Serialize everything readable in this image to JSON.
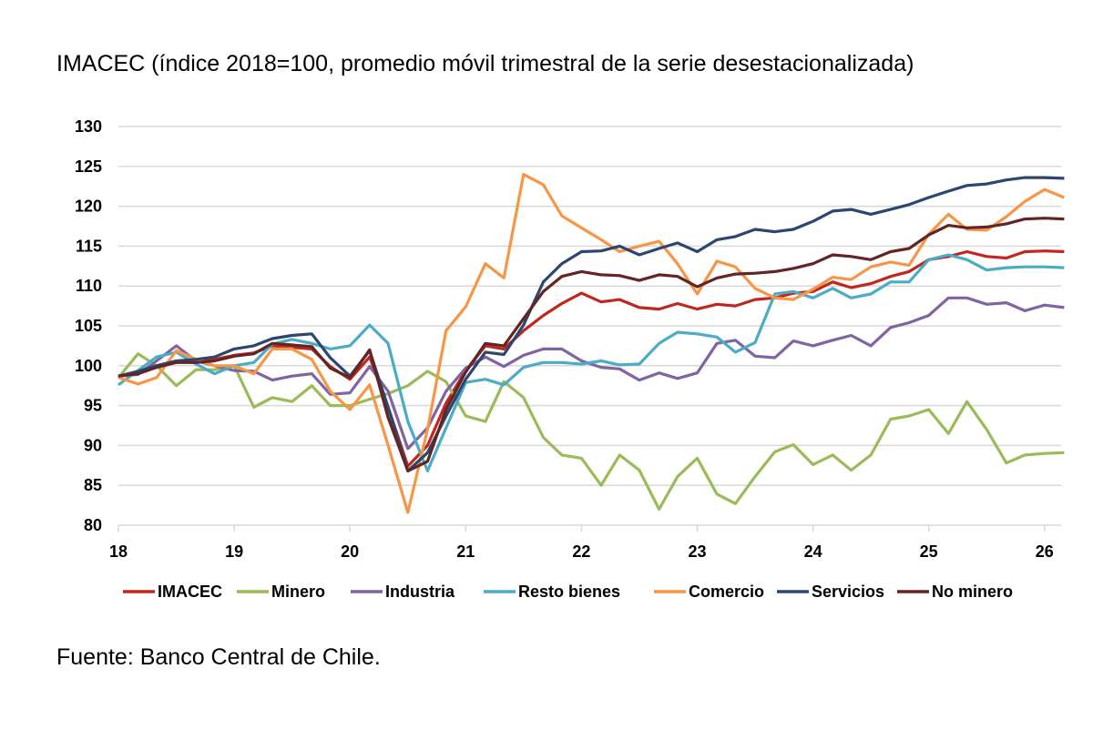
{
  "title": "IMACEC (índice 2018=100, promedio móvil trimestral de la serie desestacionalizada)",
  "source": "Fuente: Banco Central de Chile.",
  "chart_data": {
    "type": "line",
    "title": "IMACEC (índice 2018=100, promedio móvil trimestral de la serie desestacionalizada)",
    "xlabel": "",
    "ylabel": "",
    "xlim": [
      18,
      26.17
    ],
    "ylim": [
      80,
      130
    ],
    "x_ticks": [
      "18",
      "19",
      "20",
      "21",
      "22",
      "23",
      "24",
      "25",
      "26"
    ],
    "y_ticks": [
      "80",
      "85",
      "90",
      "95",
      "100",
      "105",
      "110",
      "115",
      "120",
      "125",
      "130"
    ],
    "grid": "horizontal",
    "legend": "bottom",
    "x": [
      18.0,
      18.17,
      18.33,
      18.5,
      18.67,
      18.83,
      19.0,
      19.17,
      19.33,
      19.5,
      19.67,
      19.83,
      20.0,
      20.17,
      20.33,
      20.5,
      20.67,
      20.83,
      21.0,
      21.17,
      21.33,
      21.5,
      21.67,
      21.83,
      22.0,
      22.17,
      22.33,
      22.5,
      22.67,
      22.83,
      23.0,
      23.17,
      23.33,
      23.5,
      23.67,
      23.83,
      24.0,
      24.17,
      24.33,
      24.5,
      24.67,
      24.83,
      25.0,
      25.17,
      25.33,
      25.5,
      25.67,
      25.83,
      26.0,
      26.17
    ],
    "series": [
      {
        "name": "IMACEC",
        "color": "#c0281f",
        "values": [
          98.7,
          99.0,
          100.0,
          100.6,
          100.4,
          100.8,
          101.3,
          101.6,
          102.5,
          102.3,
          102.1,
          99.9,
          98.3,
          101.1,
          94.8,
          87.4,
          90.0,
          95.3,
          99.4,
          102.5,
          102.1,
          104.4,
          106.3,
          107.8,
          109.1,
          108.0,
          108.3,
          107.3,
          107.1,
          107.8,
          107.1,
          107.7,
          107.5,
          108.3,
          108.5,
          109.1,
          109.3,
          110.5,
          109.8,
          110.3,
          111.2,
          111.8,
          113.3,
          113.7,
          114.3,
          113.7,
          113.5,
          114.3,
          114.4,
          114.3
        ]
      },
      {
        "name": "Minero",
        "color": "#9bbb59",
        "values": [
          98.5,
          101.5,
          100.0,
          97.5,
          99.5,
          99.5,
          100.0,
          94.8,
          96.0,
          95.5,
          97.5,
          95.0,
          95.0,
          95.8,
          96.5,
          97.5,
          99.3,
          98.0,
          93.7,
          93.0,
          98.0,
          96.0,
          91.0,
          88.8,
          88.4,
          85.0,
          88.8,
          86.9,
          82.0,
          86.1,
          88.4,
          83.9,
          82.7,
          86.1,
          89.2,
          90.1,
          87.6,
          88.8,
          86.9,
          88.8,
          93.3,
          93.7,
          94.5,
          91.5,
          95.5,
          92.0,
          87.8,
          88.8,
          89.0,
          89.1
        ]
      },
      {
        "name": "Industria",
        "color": "#8064a2",
        "values": [
          98.7,
          98.9,
          100.6,
          102.5,
          100.6,
          100.0,
          99.4,
          99.3,
          98.2,
          98.7,
          99.0,
          96.4,
          96.6,
          99.9,
          96.8,
          89.6,
          92.2,
          96.8,
          99.7,
          101.1,
          99.9,
          101.3,
          102.1,
          102.1,
          100.6,
          99.8,
          99.6,
          98.2,
          99.1,
          98.4,
          99.1,
          102.8,
          103.2,
          101.2,
          101.0,
          103.1,
          102.5,
          103.2,
          103.8,
          102.5,
          104.8,
          105.4,
          106.3,
          108.5,
          108.5,
          107.7,
          107.9,
          106.9,
          107.6,
          107.3
        ]
      },
      {
        "name": "Resto bienes",
        "color": "#4bacc6",
        "values": [
          97.6,
          99.4,
          101.1,
          101.7,
          100.2,
          99.0,
          100.0,
          100.4,
          102.7,
          103.3,
          102.8,
          102.1,
          102.5,
          105.1,
          102.8,
          93.0,
          86.8,
          92.2,
          97.9,
          98.3,
          97.6,
          99.8,
          100.4,
          100.4,
          100.2,
          100.6,
          100.1,
          100.2,
          102.8,
          104.2,
          104.0,
          103.6,
          101.7,
          102.9,
          109.0,
          109.3,
          108.5,
          109.7,
          108.5,
          109.0,
          110.5,
          110.5,
          113.3,
          113.9,
          113.3,
          112.0,
          112.3,
          112.4,
          112.4,
          112.3
        ]
      },
      {
        "name": "Comercio",
        "color": "#f79646",
        "values": [
          98.5,
          97.7,
          98.5,
          101.9,
          100.8,
          100.0,
          100.0,
          99.0,
          102.1,
          102.1,
          100.8,
          96.8,
          94.5,
          97.6,
          90.0,
          81.6,
          92.0,
          104.4,
          107.4,
          112.8,
          111.0,
          124.0,
          122.7,
          118.8,
          117.3,
          115.8,
          114.3,
          115.0,
          115.6,
          112.8,
          109.0,
          113.1,
          112.4,
          109.7,
          108.5,
          108.3,
          109.6,
          111.1,
          110.8,
          112.4,
          113.0,
          112.6,
          116.5,
          119.0,
          117.1,
          117.0,
          118.7,
          120.6,
          122.1,
          121.1
        ]
      },
      {
        "name": "Servicios",
        "color": "#2b4670",
        "values": [
          98.7,
          99.3,
          100.0,
          100.6,
          100.8,
          101.1,
          102.1,
          102.5,
          103.4,
          103.8,
          104.0,
          101.0,
          98.7,
          101.9,
          94.8,
          86.8,
          89.1,
          93.7,
          98.3,
          101.7,
          101.4,
          105.1,
          110.5,
          112.8,
          114.3,
          114.4,
          115.0,
          113.9,
          114.7,
          115.4,
          114.3,
          115.8,
          116.2,
          117.1,
          116.8,
          117.1,
          118.1,
          119.4,
          119.6,
          119.0,
          119.6,
          120.2,
          121.1,
          121.9,
          122.6,
          122.8,
          123.3,
          123.6,
          123.6,
          123.5
        ]
      },
      {
        "name": "No minero",
        "color": "#632523",
        "values": [
          98.7,
          99.0,
          99.8,
          100.4,
          100.4,
          100.6,
          101.2,
          101.5,
          102.8,
          102.6,
          102.4,
          99.7,
          98.5,
          102.0,
          93.5,
          86.8,
          88.0,
          94.5,
          99.2,
          102.8,
          102.5,
          105.9,
          109.3,
          111.2,
          111.8,
          111.4,
          111.3,
          110.7,
          111.4,
          111.2,
          109.9,
          111.0,
          111.5,
          111.6,
          111.8,
          112.2,
          112.8,
          113.9,
          113.7,
          113.3,
          114.3,
          114.7,
          116.4,
          117.6,
          117.3,
          117.4,
          117.8,
          118.4,
          118.5,
          118.4
        ]
      }
    ]
  }
}
